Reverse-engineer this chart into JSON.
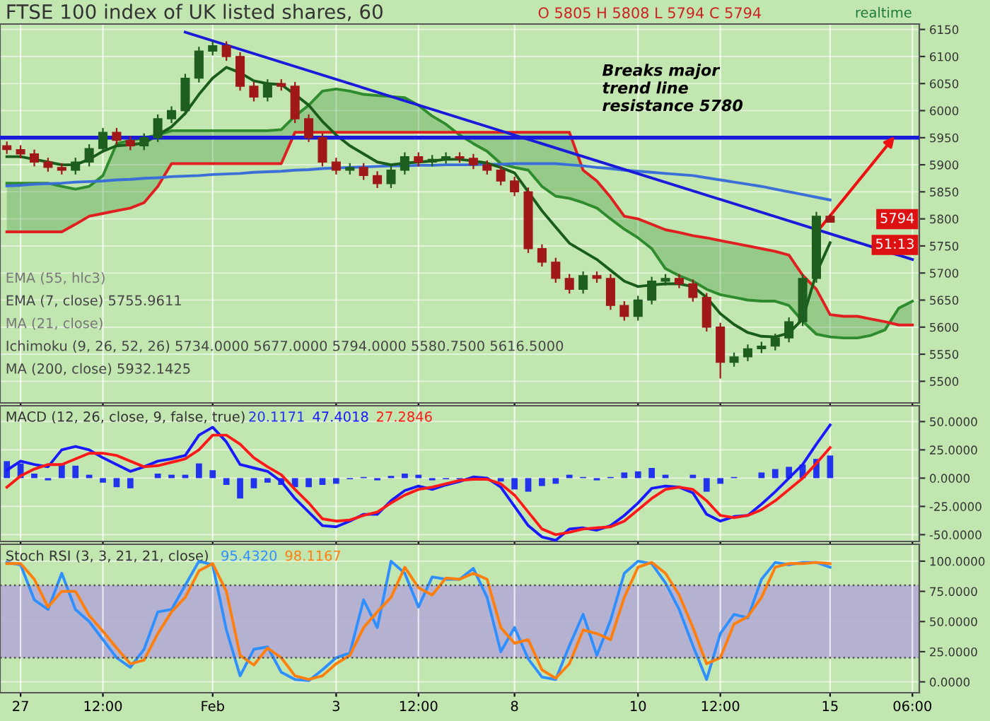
{
  "chart_data": [
    {
      "type": "candlestick",
      "title": "FTSE 100 index of UK listed shares, 60",
      "categories": [
        null,
        null,
        null,
        null,
        null,
        null,
        null,
        null,
        null,
        null,
        null,
        null,
        null,
        null,
        null,
        null,
        null,
        null,
        null,
        null,
        null,
        null,
        null,
        null,
        null,
        null,
        null,
        null,
        null,
        null,
        null,
        null,
        null,
        null,
        null,
        null,
        null,
        null,
        null,
        null,
        null,
        null,
        null,
        null,
        null,
        null,
        null,
        null,
        null,
        null,
        null,
        null,
        null,
        null,
        null,
        null,
        null,
        null,
        null,
        null,
        null,
        null,
        null,
        null,
        null,
        null,
        null
      ],
      "colors": [
        "#a01818",
        "#a01818",
        "#a01818",
        "#a01818",
        "#a01818",
        "#1e5e1e",
        "#1e5e1e",
        "#1e5e1e",
        "#a01818",
        "#a01818",
        "#1e5e1e",
        "#1e5e1e",
        "#1e5e1e",
        "#1e5e1e",
        "#1e5e1e",
        "#1e5e1e",
        "#a01818",
        "#a01818",
        "#a01818",
        "#1e5e1e",
        "#a01818",
        "#a01818",
        "#a01818",
        "#a01818",
        "#a01818",
        "#1e5e1e",
        "#a01818",
        "#a01818",
        "#1e5e1e",
        "#1e5e1e",
        "#a01818",
        "#1e5e1e",
        "#1e5e1e",
        "#a01818",
        "#a01818",
        "#a01818",
        "#a01818",
        "#a01818",
        "#a01818",
        "#a01818",
        "#a01818",
        "#a01818",
        "#1e5e1e",
        "#a01818",
        "#a01818",
        "#a01818",
        "#1e5e1e",
        "#1e5e1e",
        "#1e5e1e",
        "#a01818",
        "#a01818",
        "#a01818",
        "#a01818",
        "#1e5e1e",
        "#1e5e1e",
        "#1e5e1e",
        "#1e5e1e",
        "#1e5e1e",
        "#1e5e1e",
        "#1e5e1e",
        "#a01818",
        null,
        null,
        null,
        null,
        null,
        null
      ],
      "ohlc": [
        [
          5935,
          5943,
          5920,
          5928
        ],
        [
          5928,
          5936,
          5912,
          5920
        ],
        [
          5920,
          5928,
          5897,
          5905
        ],
        [
          5905,
          5913,
          5887,
          5895
        ],
        [
          5895,
          5903,
          5882,
          5890
        ],
        [
          5890,
          5913,
          5882,
          5905
        ],
        [
          5905,
          5938,
          5897,
          5930
        ],
        [
          5930,
          5968,
          5922,
          5960
        ],
        [
          5960,
          5968,
          5937,
          5945
        ],
        [
          5945,
          5953,
          5927,
          5935
        ],
        [
          5935,
          5958,
          5927,
          5950
        ],
        [
          5950,
          5993,
          5942,
          5985
        ],
        [
          5985,
          6008,
          5977,
          6000
        ],
        [
          6000,
          6068,
          5992,
          6060
        ],
        [
          6060,
          6118,
          6052,
          6110
        ],
        [
          6110,
          6128,
          6102,
          6120
        ],
        [
          6120,
          6128,
          6092,
          6100
        ],
        [
          6100,
          6108,
          6037,
          6045
        ],
        [
          6045,
          6053,
          6017,
          6025
        ],
        [
          6025,
          6058,
          6017,
          6050
        ],
        [
          6050,
          6058,
          6037,
          6045
        ],
        [
          6045,
          6053,
          5977,
          5985
        ],
        [
          5985,
          5993,
          5942,
          5950
        ],
        [
          5950,
          5958,
          5897,
          5905
        ],
        [
          5905,
          5913,
          5882,
          5890
        ],
        [
          5890,
          5903,
          5882,
          5895
        ],
        [
          5895,
          5903,
          5872,
          5880
        ],
        [
          5880,
          5888,
          5857,
          5865
        ],
        [
          5865,
          5898,
          5857,
          5890
        ],
        [
          5890,
          5923,
          5882,
          5915
        ],
        [
          5915,
          5923,
          5897,
          5905
        ],
        [
          5905,
          5918,
          5897,
          5910
        ],
        [
          5910,
          5923,
          5902,
          5915
        ],
        [
          5915,
          5923,
          5904,
          5912
        ],
        [
          5912,
          5920,
          5892,
          5900
        ],
        [
          5900,
          5908,
          5882,
          5890
        ],
        [
          5890,
          5898,
          5862,
          5870
        ],
        [
          5870,
          5878,
          5842,
          5850
        ],
        [
          5850,
          5858,
          5737,
          5745
        ],
        [
          5745,
          5753,
          5712,
          5720
        ],
        [
          5720,
          5728,
          5682,
          5690
        ],
        [
          5690,
          5698,
          5662,
          5670
        ],
        [
          5670,
          5703,
          5662,
          5695
        ],
        [
          5695,
          5703,
          5682,
          5690
        ],
        [
          5690,
          5698,
          5632,
          5640
        ],
        [
          5640,
          5648,
          5612,
          5620
        ],
        [
          5620,
          5658,
          5612,
          5650
        ],
        [
          5650,
          5693,
          5642,
          5685
        ],
        [
          5685,
          5698,
          5677,
          5690
        ],
        [
          5690,
          5698,
          5672,
          5680
        ],
        [
          5680,
          5688,
          5647,
          5655
        ],
        [
          5655,
          5663,
          5592,
          5600
        ],
        [
          5600,
          5608,
          5505,
          5535
        ],
        [
          5535,
          5553,
          5527,
          5545
        ],
        [
          5545,
          5568,
          5537,
          5560
        ],
        [
          5560,
          5573,
          5552,
          5565
        ],
        [
          5565,
          5588,
          5557,
          5580
        ],
        [
          5580,
          5618,
          5572,
          5610
        ],
        [
          5610,
          5698,
          5602,
          5690
        ],
        [
          5690,
          5813,
          5682,
          5805
        ],
        [
          5805,
          5808,
          5794,
          5794
        ],
        null,
        null,
        null,
        null,
        null,
        null
      ],
      "series": [
        {
          "type": "line",
          "color": "#2e8b2e",
          "upper": [
            5776,
            5776,
            5776,
            5776,
            5776,
            5790,
            5805,
            5810,
            5815,
            5820,
            5830,
            5860,
            5902,
            5902,
            5902,
            5902,
            5902,
            5902,
            5902,
            5902,
            5902,
            5960,
            5960,
            5960,
            5960,
            5960,
            5960,
            5960,
            5960,
            5960,
            5960,
            5960,
            5960,
            5960,
            5960,
            5960,
            5960,
            5960,
            5960,
            5960,
            5960,
            5960,
            5890,
            5870,
            5840,
            5805,
            5800,
            5790,
            5780,
            5775,
            5769,
            5765,
            5760,
            5755,
            5750,
            5745,
            5740,
            5733,
            5696,
            5670,
            5623,
            5620,
            5620,
            5615,
            5610,
            5604,
            5604
          ],
          "lower": [
            5866,
            5866,
            5866,
            5866,
            5860,
            5855,
            5860,
            5880,
            5939,
            5945,
            5950,
            5955,
            5963,
            5963,
            5963,
            5963,
            5963,
            5963,
            5963,
            5963,
            5965,
            5990,
            6010,
            6036,
            6040,
            6036,
            6030,
            6028,
            6026,
            6024,
            6010,
            5990,
            5975,
            5955,
            5939,
            5925,
            5902,
            5895,
            5890,
            5860,
            5842,
            5838,
            5830,
            5820,
            5800,
            5781,
            5765,
            5745,
            5708,
            5695,
            5685,
            5670,
            5660,
            5655,
            5650,
            5648,
            5648,
            5640,
            5611,
            5587,
            5582,
            5580,
            5580,
            5585,
            5595,
            5635,
            5648
          ],
          "values": [
            5866,
            5866,
            5866,
            5866,
            5860,
            5855,
            5860,
            5880,
            5939,
            5945,
            5950,
            5955,
            5963,
            5963,
            5963,
            5963,
            5963,
            5963,
            5963,
            5963,
            5965,
            5990,
            6010,
            6036,
            6040,
            6036,
            6030,
            6028,
            6026,
            6024,
            6010,
            5990,
            5975,
            5955,
            5939,
            5925,
            5902,
            5895,
            5890,
            5860,
            5842,
            5838,
            5830,
            5820,
            5800,
            5781,
            5765,
            5745,
            5708,
            5695,
            5685,
            5670,
            5660,
            5655,
            5650,
            5648,
            5648,
            5640,
            5611,
            5587,
            5582,
            5580,
            5580,
            5585,
            5595,
            5635,
            5648
          ]
        },
        {
          "type": "line",
          "color": "#e02020",
          "values": [
            5776,
            5776,
            5776,
            5776,
            5776,
            5790,
            5805,
            5810,
            5815,
            5820,
            5830,
            5860,
            5902,
            5902,
            5902,
            5902,
            5902,
            5902,
            5902,
            5902,
            5902,
            5960,
            5960,
            5960,
            5960,
            5960,
            5960,
            5960,
            5960,
            5960,
            5960,
            5960,
            5960,
            5960,
            5960,
            5960,
            5960,
            5960,
            5960,
            5960,
            5960,
            5960,
            5890,
            5870,
            5840,
            5805,
            5800,
            5790,
            5780,
            5775,
            5769,
            5765,
            5760,
            5755,
            5750,
            5745,
            5740,
            5733,
            5696,
            5670,
            5623,
            5620,
            5620,
            5615,
            5610,
            5604,
            5604
          ]
        },
        {
          "type": "line",
          "color": "#3a6fd8",
          "values": [
            5861,
            5862,
            5864,
            5865,
            5866,
            5868,
            5869,
            5870,
            5872,
            5873,
            5875,
            5876,
            5878,
            5879,
            5880,
            5882,
            5883,
            5884,
            5886,
            5887,
            5888,
            5890,
            5891,
            5893,
            5894,
            5895,
            5896,
            5897,
            5898,
            5898,
            5899,
            5899,
            5900,
            5900,
            5900,
            5901,
            5901,
            5902,
            5902,
            5902,
            5902,
            5900,
            5898,
            5895,
            5893,
            5890,
            5888,
            5886,
            5884,
            5882,
            5880,
            5876,
            5872,
            5868,
            5864,
            5860,
            5855,
            5850,
            5845,
            5840,
            5835,
            null,
            null,
            null,
            null,
            null,
            null
          ]
        },
        {
          "type": "line",
          "color": "#1a5c1a",
          "values": [
            5915,
            5915,
            5910,
            5905,
            5900,
            5900,
            5910,
            5925,
            5935,
            5937,
            5940,
            5955,
            5970,
            5995,
            6030,
            6060,
            6080,
            6070,
            6055,
            6050,
            6048,
            6030,
            6010,
            5980,
            5955,
            5935,
            5920,
            5905,
            5900,
            5903,
            5905,
            5907,
            5910,
            5910,
            5907,
            5903,
            5895,
            5885,
            5850,
            5815,
            5785,
            5755,
            5740,
            5725,
            5705,
            5685,
            5675,
            5678,
            5680,
            5680,
            5675,
            5655,
            5625,
            5605,
            5590,
            5583,
            5582,
            5589,
            5615,
            5700,
            5756,
            null,
            null,
            null,
            null,
            null,
            null
          ]
        },
        {
          "type": "line",
          "color": "#1a1adb",
          "values": [
            null,
            null,
            null,
            null,
            null,
            null,
            null,
            null,
            null,
            null,
            null,
            null,
            null,
            6145,
            null,
            null,
            null,
            null,
            null,
            null,
            null,
            null,
            null,
            null,
            null,
            null,
            null,
            null,
            null,
            null,
            null,
            null,
            null,
            null,
            null,
            null,
            null,
            null,
            null,
            null,
            null,
            null,
            null,
            null,
            null,
            null,
            null,
            null,
            null,
            null,
            null,
            null,
            null,
            null,
            null,
            null,
            null,
            null,
            null,
            null,
            null,
            null,
            null,
            null,
            null,
            null,
            5725
          ]
        }
      ],
      "ref_lines": [
        {
          "axis": "y",
          "value": 5950,
          "color": "#1a1adb",
          "line_style": "solid"
        }
      ],
      "annotations": [
        "O 5805 H 5808 L 5794 C 5794",
        "EMA (55, hlc3)",
        "EMA (7, close) 5755.9611",
        "MA (21, close)",
        "Ichimoku (9, 26, 52, 26) 5734.0000 5677.0000 5794.0000 5580.7500 5616.5000",
        "MA (200, close) 5932.1425",
        "Breaks major\ntrend line\nresistance 5780",
        "realtime",
        "5794",
        "51:13"
      ],
      "ylim": [
        5460,
        6160
      ],
      "yticks": [
        5500,
        5550,
        5600,
        5650,
        5700,
        5750,
        5800,
        5850,
        5900,
        5950,
        6000,
        6050,
        6100,
        6150
      ],
      "tick_labels": "y",
      "grid": true
    },
    {
      "type": "line",
      "title": "MACD (12, 26, close, 9, false, true)",
      "categories": [
        null,
        null,
        null,
        null,
        null,
        null,
        null,
        null,
        null,
        null,
        null,
        null,
        null,
        null,
        null,
        null,
        null,
        null,
        null,
        null,
        null,
        null,
        null,
        null,
        null,
        null,
        null,
        null,
        null,
        null,
        null,
        null,
        null,
        null,
        null,
        null,
        null,
        null,
        null,
        null,
        null,
        null,
        null,
        null,
        null,
        null,
        null,
        null,
        null,
        null,
        null,
        null,
        null,
        null,
        null,
        null,
        null,
        null,
        null,
        null,
        null,
        null,
        null,
        null,
        null,
        null,
        null
      ],
      "series": [
        {
          "type": "bar",
          "color": "#2233ee",
          "values": [
            15,
            13,
            4,
            -2,
            13,
            11,
            3,
            -4,
            -8,
            -9,
            0,
            4,
            3,
            3,
            13,
            7,
            -6,
            -18,
            -9,
            -4,
            -6,
            -8,
            -8,
            -6,
            -5,
            -1,
            1,
            -2,
            2,
            4,
            3,
            -2,
            -1,
            -1,
            null,
            null,
            -3,
            -10,
            -12,
            -7,
            -5,
            3,
            1,
            -2,
            1,
            5,
            6,
            9,
            3,
            0,
            3,
            -12,
            -5,
            1,
            0,
            5,
            8,
            10,
            12,
            17,
            20,
            null,
            null,
            null,
            null,
            null,
            null
          ]
        },
        {
          "type": "line",
          "color": "#1a1aff",
          "values": [
            7,
            15,
            12,
            10,
            25,
            28,
            25,
            18,
            12,
            6,
            10,
            15,
            17,
            20,
            38,
            45,
            32,
            12,
            9,
            6,
            -3,
            -18,
            -30,
            -42,
            -43,
            -38,
            -32,
            -32,
            -20,
            -11,
            -7,
            -10,
            -6,
            -3,
            1,
            0,
            -8,
            -25,
            -42,
            -52,
            -55,
            -45,
            -44,
            -46,
            -42,
            -33,
            -22,
            -9,
            -7,
            -8,
            -13,
            -32,
            -38,
            -34,
            -33,
            -23,
            -12,
            0,
            12,
            30,
            47,
            null,
            null,
            null,
            null,
            null,
            null
          ]
        },
        {
          "type": "line",
          "color": "#ff1a1a",
          "values": [
            -8,
            2,
            8,
            12,
            12,
            17,
            22,
            22,
            20,
            15,
            10,
            11,
            14,
            17,
            25,
            38,
            38,
            30,
            18,
            10,
            3,
            -10,
            -22,
            -36,
            -38,
            -37,
            -33,
            -30,
            -22,
            -15,
            -10,
            -8,
            -5,
            -2,
            -1,
            -1,
            -5,
            -15,
            -30,
            -45,
            -50,
            -48,
            -45,
            -44,
            -43,
            -38,
            -28,
            -18,
            -10,
            -8,
            -10,
            -20,
            -33,
            -35,
            -33,
            -28,
            -20,
            -10,
            0,
            13,
            27,
            null,
            null,
            null,
            null,
            null,
            null
          ]
        }
      ],
      "annotations": [
        "20.1171",
        "47.4018",
        "27.2846"
      ],
      "ylim": [
        -56,
        64
      ],
      "yticks": [
        {
          "value": -50,
          "label": "-50.0000"
        },
        {
          "value": -25,
          "label": "-25.0000"
        },
        {
          "value": 0,
          "label": "0.0000"
        },
        {
          "value": 25,
          "label": "25.0000"
        },
        {
          "value": 50,
          "label": "50.0000"
        }
      ],
      "tick_labels": "y",
      "grid": true
    },
    {
      "type": "line",
      "title": "Stoch RSI (3, 3, 21, 21, close)",
      "categories": [
        null,
        "27",
        null,
        null,
        null,
        null,
        null,
        "12:00",
        null,
        null,
        null,
        null,
        null,
        null,
        null,
        "Feb",
        null,
        null,
        null,
        null,
        null,
        null,
        null,
        null,
        "3",
        null,
        null,
        null,
        null,
        null,
        "12:00",
        null,
        null,
        null,
        null,
        null,
        null,
        "8",
        null,
        null,
        null,
        null,
        null,
        null,
        null,
        null,
        "10",
        null,
        null,
        null,
        null,
        null,
        "12:00",
        null,
        null,
        null,
        null,
        null,
        null,
        null,
        "15",
        null,
        null,
        null,
        null,
        null,
        "06:00"
      ],
      "series": [
        {
          "type": "line",
          "color": "#2f8fff",
          "values": [
            99,
            97,
            68,
            60,
            90,
            60,
            50,
            35,
            20,
            12,
            27,
            58,
            60,
            80,
            100,
            97,
            43,
            5,
            27,
            29,
            8,
            2,
            1,
            10,
            20,
            24,
            68,
            45,
            100,
            90,
            62,
            87,
            85,
            85,
            94,
            70,
            25,
            45,
            19,
            4,
            2,
            30,
            56,
            22,
            51,
            90,
            100,
            98,
            82,
            60,
            30,
            2,
            40,
            56,
            53,
            85,
            99,
            97,
            99,
            99,
            95,
            null,
            null,
            null,
            null,
            null,
            null
          ]
        },
        {
          "type": "line",
          "color": "#ff7f0e",
          "values": [
            98,
            98,
            85,
            62,
            75,
            75,
            55,
            42,
            28,
            15,
            18,
            40,
            58,
            70,
            92,
            98,
            75,
            22,
            14,
            28,
            20,
            5,
            2,
            5,
            15,
            22,
            45,
            58,
            70,
            95,
            78,
            72,
            86,
            85,
            90,
            85,
            45,
            32,
            35,
            10,
            3,
            15,
            43,
            40,
            35,
            70,
            95,
            99,
            90,
            72,
            45,
            15,
            20,
            48,
            54,
            70,
            95,
            98,
            98,
            99,
            98,
            null,
            null,
            null,
            null,
            null,
            null
          ]
        }
      ],
      "bands": [
        {
          "axis": "y",
          "from": 20,
          "to": 80,
          "color": "#b3a7d6"
        }
      ],
      "ref_lines": [
        {
          "axis": "y",
          "value": 20,
          "color": "#555555",
          "line_style": "dotted"
        },
        {
          "axis": "y",
          "value": 80,
          "color": "#555555",
          "line_style": "dotted"
        }
      ],
      "annotations": [
        "95.4320",
        "98.1167"
      ],
      "ylim": [
        -9,
        114
      ],
      "yticks": [
        {
          "value": 0,
          "label": "0.0000"
        },
        {
          "value": 25,
          "label": "25.0000"
        },
        {
          "value": 50,
          "label": "50.0000"
        },
        {
          "value": 75,
          "label": "75.0000"
        },
        {
          "value": 100,
          "label": "100.0000"
        }
      ],
      "grid": true
    }
  ]
}
